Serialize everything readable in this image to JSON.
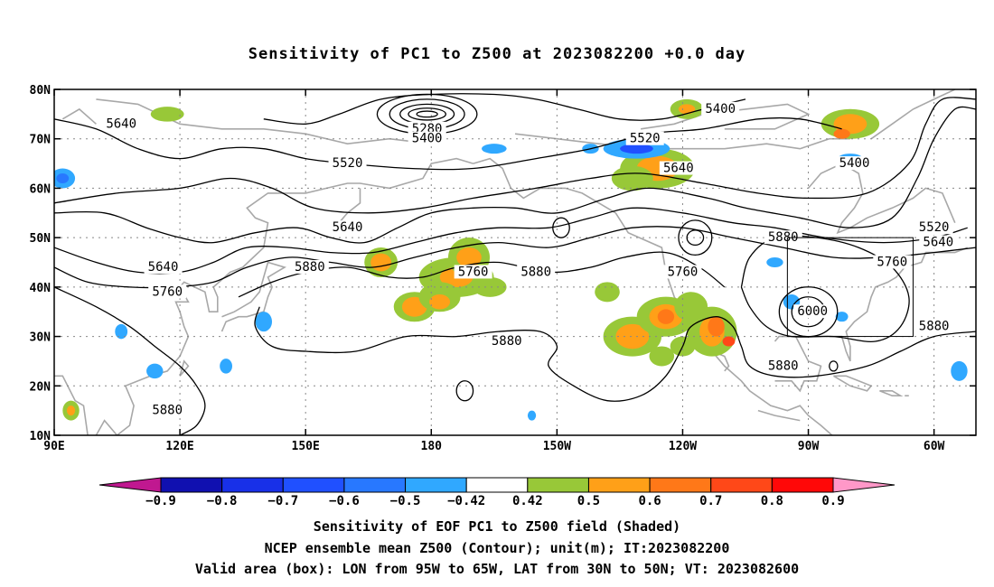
{
  "title": "Sensitivity of PC1 to Z500 at 2023082200 +0.0 day",
  "captions": [
    "Sensitivity of EOF PC1 to Z500 field (Shaded)",
    "NCEP ensemble mean Z500 (Contour); unit(m); IT:2023082200",
    "Valid area (box): LON from 95W to 65W, LAT from 30N to 50N; VT: 2023082600"
  ],
  "map": {
    "lat_ticks": [
      "10N",
      "20N",
      "30N",
      "40N",
      "50N",
      "60N",
      "70N",
      "80N"
    ],
    "lon_ticks": [
      "90E",
      "120E",
      "150E",
      "180",
      "150W",
      "120W",
      "90W",
      "60W"
    ],
    "lat_range": [
      10,
      80
    ],
    "lon_range_east": [
      90,
      310
    ],
    "valid_box": {
      "lon": [
        265,
        295
      ],
      "lat": [
        30,
        50
      ]
    },
    "contour_labels": [
      {
        "text": "5640",
        "lon": 106,
        "lat": 73
      },
      {
        "text": "5280",
        "lon": 179,
        "lat": 72
      },
      {
        "text": "5400",
        "lon": 179,
        "lat": 70
      },
      {
        "text": "5400",
        "lon": 249,
        "lat": 76
      },
      {
        "text": "5520",
        "lon": 231,
        "lat": 70
      },
      {
        "text": "5520",
        "lon": 160,
        "lat": 65
      },
      {
        "text": "5640",
        "lon": 239,
        "lat": 64
      },
      {
        "text": "5400",
        "lon": 281,
        "lat": 65
      },
      {
        "text": "5520",
        "lon": 300,
        "lat": 52
      },
      {
        "text": "5640",
        "lon": 160,
        "lat": 52
      },
      {
        "text": "5880",
        "lon": 264,
        "lat": 50
      },
      {
        "text": "5640",
        "lon": 301,
        "lat": 49
      },
      {
        "text": "5640",
        "lon": 116,
        "lat": 44
      },
      {
        "text": "5880",
        "lon": 151,
        "lat": 44
      },
      {
        "text": "5760",
        "lon": 290,
        "lat": 45
      },
      {
        "text": "5760",
        "lon": 190,
        "lat": 43
      },
      {
        "text": "5880",
        "lon": 205,
        "lat": 43
      },
      {
        "text": "5760",
        "lon": 240,
        "lat": 43
      },
      {
        "text": "5760",
        "lon": 117,
        "lat": 39
      },
      {
        "text": "6000",
        "lon": 271,
        "lat": 35
      },
      {
        "text": "5880",
        "lon": 198,
        "lat": 29
      },
      {
        "text": "5880",
        "lon": 300,
        "lat": 32
      },
      {
        "text": "5880",
        "lon": 264,
        "lat": 24
      },
      {
        "text": "5880",
        "lon": 117,
        "lat": 15
      }
    ]
  },
  "colorbar": {
    "labels": [
      "-0.9",
      "-0.8",
      "-0.7",
      "-0.6",
      "-0.5",
      "-0.42",
      "0.42",
      "0.5",
      "0.6",
      "0.7",
      "0.8",
      "0.9"
    ],
    "colors": [
      "#1010b0",
      "#1830e8",
      "#2050ff",
      "#2878ff",
      "#30a8ff",
      "#ffffff",
      "#98c838",
      "#ffa018",
      "#ff7818",
      "#ff4818",
      "#ff0808"
    ],
    "low_end_color": "#c01890",
    "high_end_color": "#ff98c8"
  }
}
